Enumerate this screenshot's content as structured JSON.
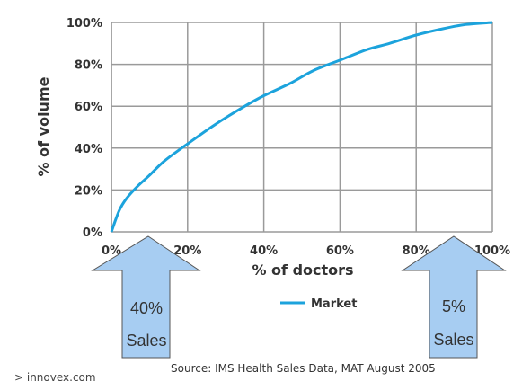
{
  "chart_data": {
    "type": "line",
    "xlabel": "% of doctors",
    "ylabel": "% of volume",
    "xlim": [
      0,
      100
    ],
    "ylim": [
      0,
      100
    ],
    "grid": true,
    "legend_placement": "bottom-center",
    "x_ticks": [
      "0%",
      "20%",
      "40%",
      "60%",
      "80%",
      "100%"
    ],
    "y_ticks": [
      "0%",
      "20%",
      "40%",
      "60%",
      "80%",
      "100%"
    ],
    "series": [
      {
        "name": "Market",
        "color": "#1ca3dc",
        "x": [
          0,
          2,
          4,
          7,
          10,
          14,
          20,
          27,
          35,
          40,
          47,
          53,
          60,
          67,
          73,
          80,
          87,
          93,
          100
        ],
        "y": [
          0,
          10,
          16,
          22,
          27,
          34,
          42,
          51,
          60,
          65,
          71,
          77,
          82,
          87,
          90,
          94,
          97,
          99,
          100
        ]
      }
    ]
  },
  "annotations": {
    "left_arrow": {
      "value": "40%",
      "label": "Sales",
      "color": "#a7cdf2"
    },
    "right_arrow": {
      "value": "5%",
      "label": "Sales",
      "color": "#a7cdf2"
    }
  },
  "source": "Source: IMS Health Sales Data, MAT August 2005",
  "brand": "> innovex.com"
}
